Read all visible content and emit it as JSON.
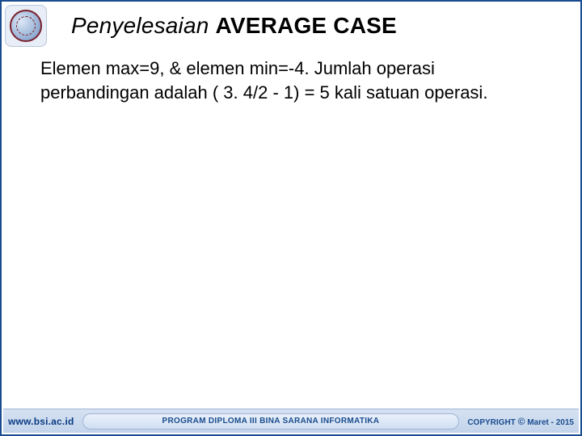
{
  "colors": {
    "border": "#1a4d8f",
    "footer_bg_top": "#d6e2f2",
    "footer_bg_bottom": "#c2d3ea",
    "footer_text": "#0a3c84",
    "pill_bg_top": "#eaf1fb",
    "pill_bg_bottom": "#d0def1",
    "logo_ring": "#7a1f2a",
    "background": "#ffffff"
  },
  "title": {
    "italic_part": "Penyelesaian",
    "bold_part": "AVERAGE CASE",
    "fontsize": 28
  },
  "body": {
    "text": "Elemen max=9, & elemen  min=-4.  Jumlah operasi  perbandingan adalah ( 3. 4/2 - 1) =  5 kali satuan operasi.",
    "fontsize": 22
  },
  "footer": {
    "url": "www.bsi.ac.id",
    "program_text": "PROGRAM DIPLOMA III BINA SARANA INFORMATIKA",
    "copyright_label": "COPYRIGHT",
    "copyright_symbol": "©",
    "copyright_period": "Maret - 2015"
  },
  "logo": {
    "semantic": "bsi-logo"
  }
}
